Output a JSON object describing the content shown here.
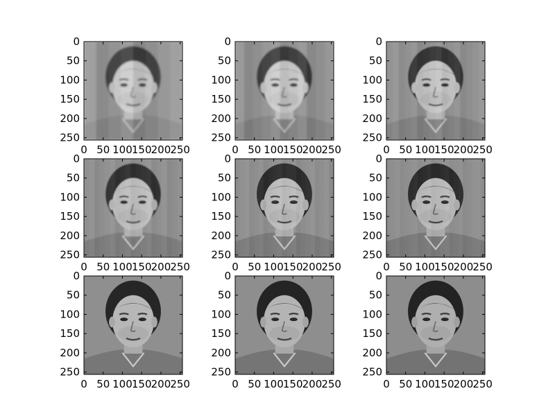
{
  "chart_data": {
    "type": "image_grid",
    "rows": 3,
    "cols": 3,
    "colormap": "gray",
    "panels": [
      {
        "id": 1,
        "image": "face-reconstruction-coarse-blocky",
        "blockiness": 1.0,
        "xticks": [
          0,
          50,
          100,
          150,
          200,
          250
        ],
        "yticks": [
          0,
          50,
          100,
          150,
          200,
          250
        ],
        "xlim": [
          0,
          256
        ],
        "ylim": [
          256,
          0
        ]
      },
      {
        "id": 2,
        "image": "face-reconstruction-blocky",
        "blockiness": 0.85,
        "xticks": [
          0,
          50,
          100,
          150,
          200,
          250
        ],
        "yticks": [
          0,
          50,
          100,
          150,
          200,
          250
        ],
        "xlim": [
          0,
          256
        ],
        "ylim": [
          256,
          0
        ]
      },
      {
        "id": 3,
        "image": "face-reconstruction-blurry",
        "blockiness": 0.6,
        "xticks": [
          0,
          50,
          100,
          150,
          200,
          250
        ],
        "yticks": [
          0,
          50,
          100,
          150,
          200,
          250
        ],
        "xlim": [
          0,
          256
        ],
        "ylim": [
          256,
          0
        ]
      },
      {
        "id": 4,
        "image": "face-reconstruction-soft",
        "blockiness": 0.45,
        "xticks": [
          0,
          50,
          100,
          150,
          200,
          250
        ],
        "yticks": [
          0,
          50,
          100,
          150,
          200,
          250
        ],
        "xlim": [
          0,
          256
        ],
        "ylim": [
          256,
          0
        ]
      },
      {
        "id": 5,
        "image": "face-reconstruction-soft",
        "blockiness": 0.35,
        "xticks": [
          0,
          50,
          100,
          150,
          200,
          250
        ],
        "yticks": [
          0,
          50,
          100,
          150,
          200,
          250
        ],
        "xlim": [
          0,
          256
        ],
        "ylim": [
          256,
          0
        ]
      },
      {
        "id": 6,
        "image": "face-reconstruction-fair",
        "blockiness": 0.28,
        "xticks": [
          0,
          50,
          100,
          150,
          200,
          250
        ],
        "yticks": [
          0,
          50,
          100,
          150,
          200,
          250
        ],
        "xlim": [
          0,
          256
        ],
        "ylim": [
          256,
          0
        ]
      },
      {
        "id": 7,
        "image": "face-reconstruction-good",
        "blockiness": 0.18,
        "xticks": [
          0,
          50,
          100,
          150,
          200,
          250
        ],
        "yticks": [
          0,
          50,
          100,
          150,
          200,
          250
        ],
        "xlim": [
          0,
          256
        ],
        "ylim": [
          256,
          0
        ]
      },
      {
        "id": 8,
        "image": "face-reconstruction-good",
        "blockiness": 0.1,
        "xticks": [
          0,
          50,
          100,
          150,
          200,
          250
        ],
        "yticks": [
          0,
          50,
          100,
          150,
          200,
          250
        ],
        "xlim": [
          0,
          256
        ],
        "ylim": [
          256,
          0
        ]
      },
      {
        "id": 9,
        "image": "face-reconstruction-sharp",
        "blockiness": 0.0,
        "xticks": [
          0,
          50,
          100,
          150,
          200,
          250
        ],
        "yticks": [
          0,
          50,
          100,
          150,
          200,
          250
        ],
        "xlim": [
          0,
          256
        ],
        "ylim": [
          256,
          0
        ]
      }
    ]
  }
}
